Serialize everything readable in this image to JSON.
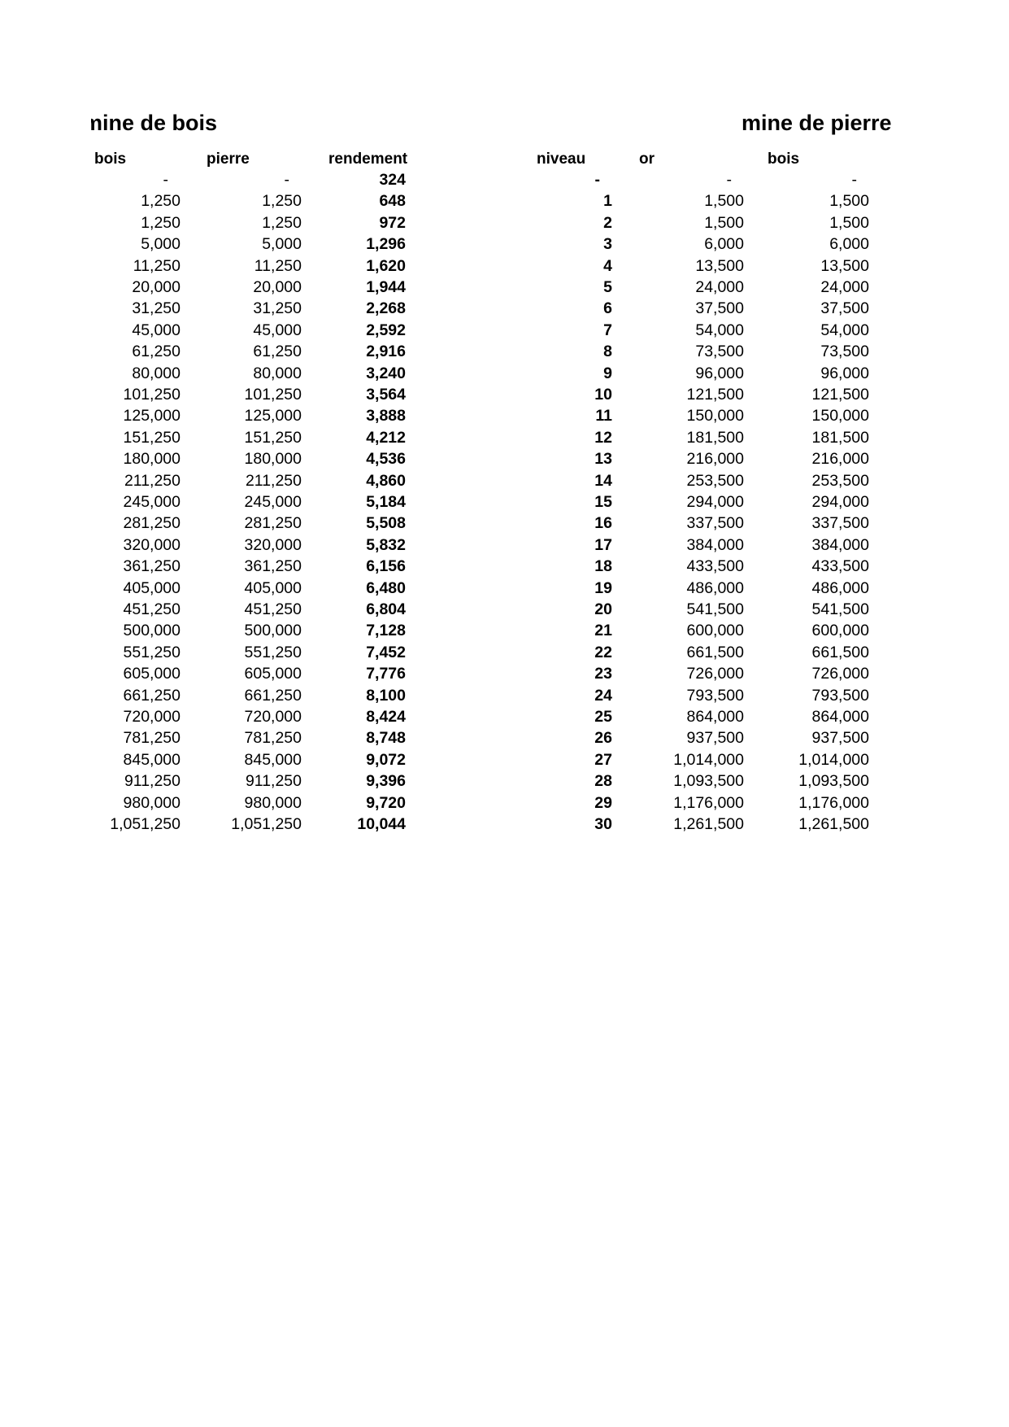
{
  "left_table": {
    "title": "mine de bois",
    "headers": [
      "bois",
      "pierre",
      "rendement"
    ],
    "rows": [
      [
        "-",
        "-",
        "324"
      ],
      [
        "1,250",
        "1,250",
        "648"
      ],
      [
        "1,250",
        "1,250",
        "972"
      ],
      [
        "5,000",
        "5,000",
        "1,296"
      ],
      [
        "11,250",
        "11,250",
        "1,620"
      ],
      [
        "20,000",
        "20,000",
        "1,944"
      ],
      [
        "31,250",
        "31,250",
        "2,268"
      ],
      [
        "45,000",
        "45,000",
        "2,592"
      ],
      [
        "61,250",
        "61,250",
        "2,916"
      ],
      [
        "80,000",
        "80,000",
        "3,240"
      ],
      [
        "101,250",
        "101,250",
        "3,564"
      ],
      [
        "125,000",
        "125,000",
        "3,888"
      ],
      [
        "151,250",
        "151,250",
        "4,212"
      ],
      [
        "180,000",
        "180,000",
        "4,536"
      ],
      [
        "211,250",
        "211,250",
        "4,860"
      ],
      [
        "245,000",
        "245,000",
        "5,184"
      ],
      [
        "281,250",
        "281,250",
        "5,508"
      ],
      [
        "320,000",
        "320,000",
        "5,832"
      ],
      [
        "361,250",
        "361,250",
        "6,156"
      ],
      [
        "405,000",
        "405,000",
        "6,480"
      ],
      [
        "451,250",
        "451,250",
        "6,804"
      ],
      [
        "500,000",
        "500,000",
        "7,128"
      ],
      [
        "551,250",
        "551,250",
        "7,452"
      ],
      [
        "605,000",
        "605,000",
        "7,776"
      ],
      [
        "661,250",
        "661,250",
        "8,100"
      ],
      [
        "720,000",
        "720,000",
        "8,424"
      ],
      [
        "781,250",
        "781,250",
        "8,748"
      ],
      [
        "845,000",
        "845,000",
        "9,072"
      ],
      [
        "911,250",
        "911,250",
        "9,396"
      ],
      [
        "980,000",
        "980,000",
        "9,720"
      ],
      [
        "1,051,250",
        "1,051,250",
        "10,044"
      ]
    ]
  },
  "right_table": {
    "title": "mine de pierre",
    "headers": [
      "niveau",
      "or",
      "bois"
    ],
    "rows": [
      [
        "-",
        "-",
        "-"
      ],
      [
        "1",
        "1,500",
        "1,500"
      ],
      [
        "2",
        "1,500",
        "1,500"
      ],
      [
        "3",
        "6,000",
        "6,000"
      ],
      [
        "4",
        "13,500",
        "13,500"
      ],
      [
        "5",
        "24,000",
        "24,000"
      ],
      [
        "6",
        "37,500",
        "37,500"
      ],
      [
        "7",
        "54,000",
        "54,000"
      ],
      [
        "8",
        "73,500",
        "73,500"
      ],
      [
        "9",
        "96,000",
        "96,000"
      ],
      [
        "10",
        "121,500",
        "121,500"
      ],
      [
        "11",
        "150,000",
        "150,000"
      ],
      [
        "12",
        "181,500",
        "181,500"
      ],
      [
        "13",
        "216,000",
        "216,000"
      ],
      [
        "14",
        "253,500",
        "253,500"
      ],
      [
        "15",
        "294,000",
        "294,000"
      ],
      [
        "16",
        "337,500",
        "337,500"
      ],
      [
        "17",
        "384,000",
        "384,000"
      ],
      [
        "18",
        "433,500",
        "433,500"
      ],
      [
        "19",
        "486,000",
        "486,000"
      ],
      [
        "20",
        "541,500",
        "541,500"
      ],
      [
        "21",
        "600,000",
        "600,000"
      ],
      [
        "22",
        "661,500",
        "661,500"
      ],
      [
        "23",
        "726,000",
        "726,000"
      ],
      [
        "24",
        "793,500",
        "793,500"
      ],
      [
        "25",
        "864,000",
        "864,000"
      ],
      [
        "26",
        "937,500",
        "937,500"
      ],
      [
        "27",
        "1,014,000",
        "1,014,000"
      ],
      [
        "28",
        "1,093,500",
        "1,093,500"
      ],
      [
        "29",
        "1,176,000",
        "1,176,000"
      ],
      [
        "30",
        "1,261,500",
        "1,261,500"
      ]
    ]
  }
}
